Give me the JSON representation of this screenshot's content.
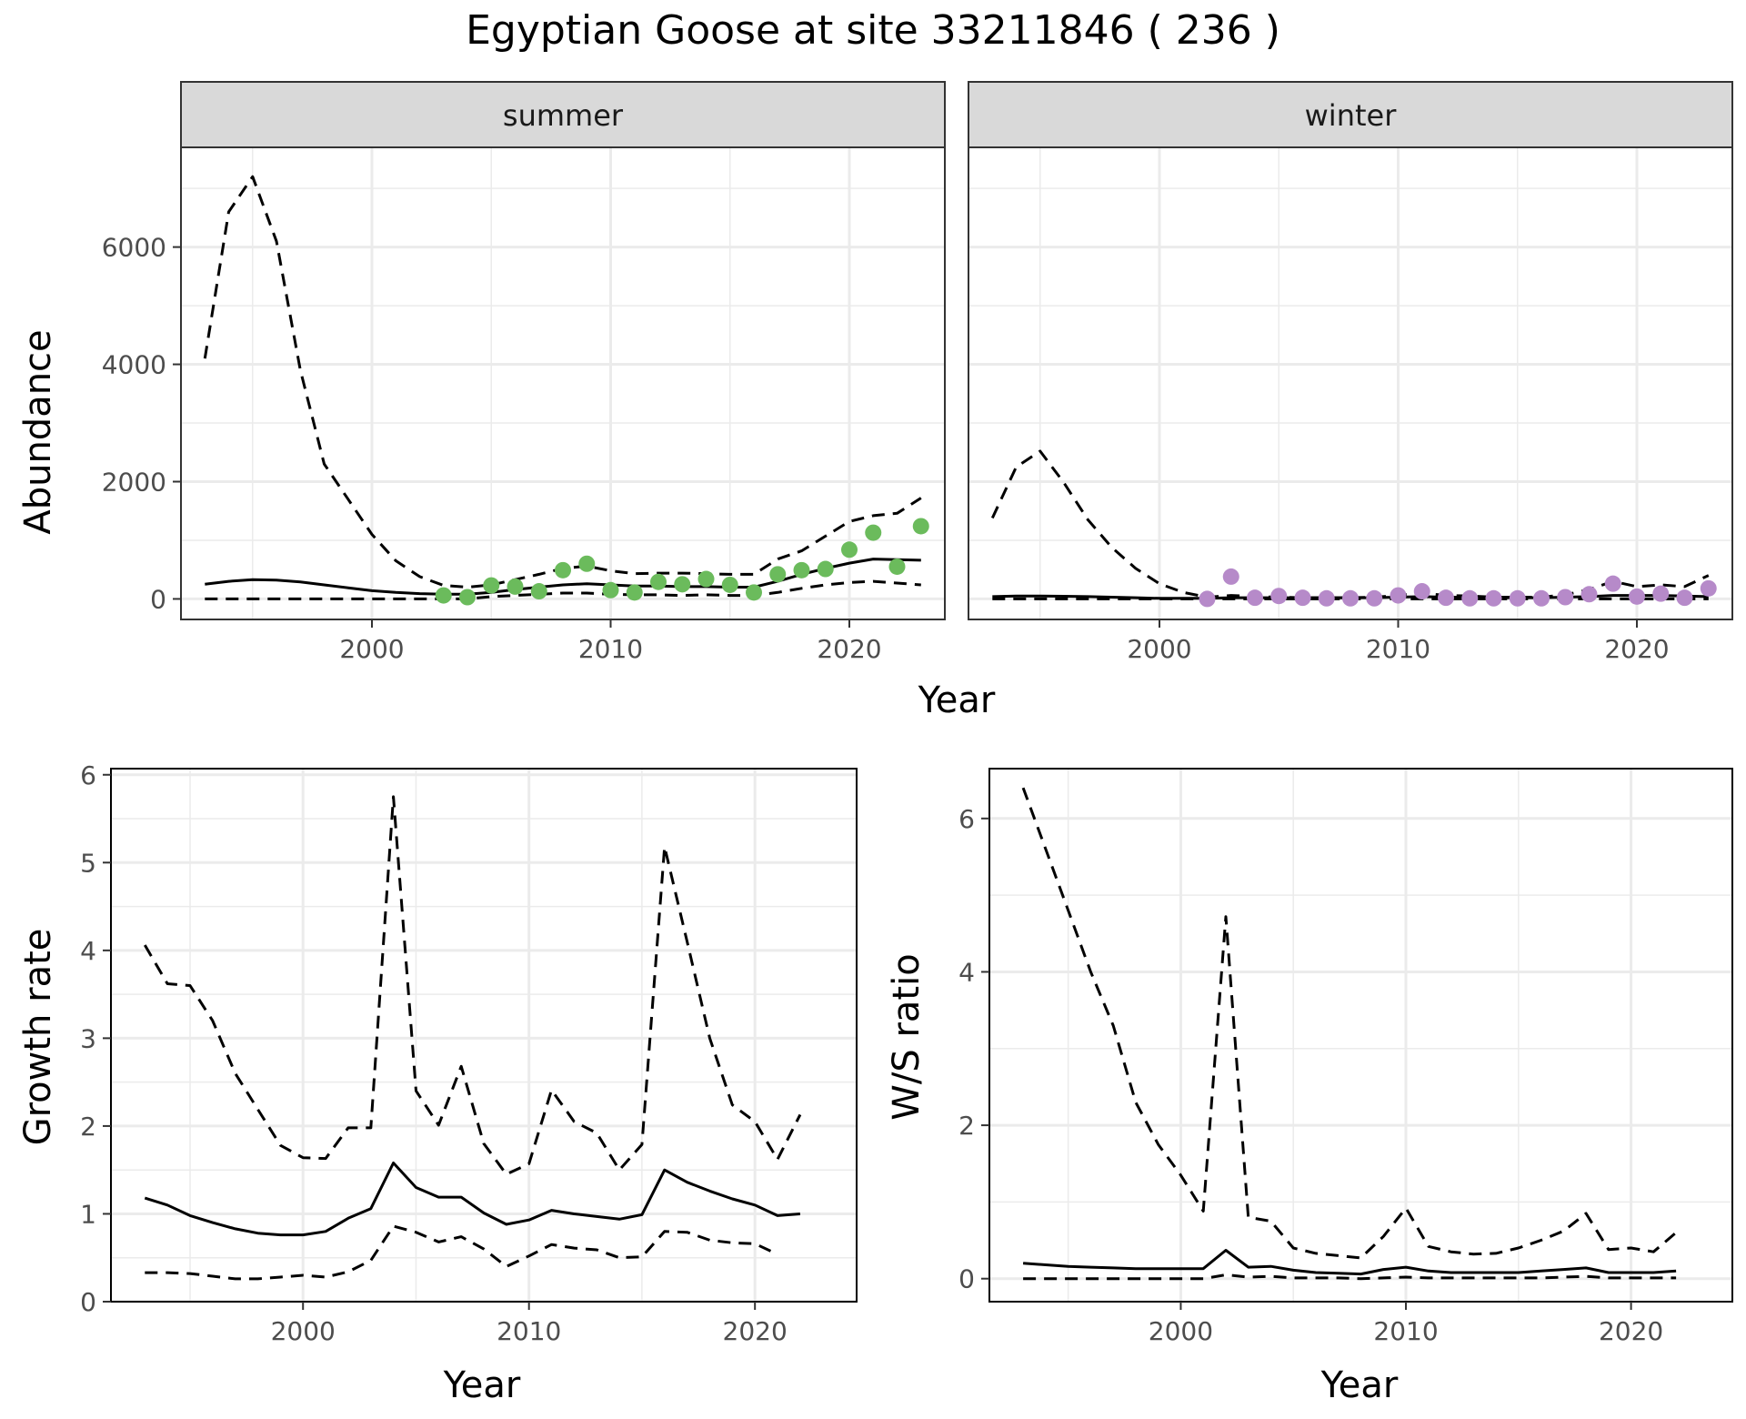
{
  "title": "Egyptian Goose at site 33211846 ( 236 )",
  "colors": {
    "summer_points": "#6bbb5c",
    "winter_points": "#b68ac9",
    "line": "#000000",
    "strip_fill": "#d9d9d9",
    "grid": "#ebebeb"
  },
  "chart_data": [
    {
      "type": "line",
      "facet": "summer",
      "xlabel": "Year",
      "ylabel": "Abundance",
      "xlim": [
        1992,
        2024
      ],
      "ylim": [
        -350,
        7700
      ],
      "xticks": [
        2000,
        2010,
        2020
      ],
      "yticks": [
        0,
        2000,
        4000,
        6000
      ],
      "grid": true,
      "x": [
        1993,
        1994,
        1995,
        1996,
        1997,
        1998,
        1999,
        2000,
        2001,
        2002,
        2003,
        2004,
        2005,
        2006,
        2007,
        2008,
        2009,
        2010,
        2011,
        2012,
        2013,
        2014,
        2015,
        2016,
        2017,
        2018,
        2019,
        2020,
        2021,
        2022,
        2023
      ],
      "series": [
        {
          "style": "solid",
          "values": [
            250,
            300,
            330,
            320,
            290,
            240,
            190,
            140,
            110,
            90,
            80,
            80,
            110,
            160,
            200,
            240,
            260,
            240,
            220,
            220,
            210,
            210,
            200,
            200,
            300,
            420,
            520,
            610,
            680,
            670,
            660
          ]
        },
        {
          "style": "dashed",
          "values": [
            4100,
            6600,
            7200,
            6100,
            3900,
            2300,
            1700,
            1100,
            650,
            380,
            230,
            200,
            240,
            330,
            420,
            520,
            560,
            480,
            430,
            440,
            440,
            430,
            420,
            420,
            680,
            820,
            1070,
            1320,
            1420,
            1460,
            1720
          ]
        },
        {
          "style": "dashed",
          "values": [
            0,
            0,
            0,
            0,
            0,
            0,
            0,
            0,
            0,
            0,
            0,
            0,
            40,
            60,
            80,
            100,
            100,
            80,
            70,
            70,
            60,
            70,
            60,
            60,
            110,
            180,
            240,
            280,
            300,
            270,
            240
          ]
        }
      ],
      "points": {
        "x": [
          2003,
          2004,
          2005,
          2006,
          2007,
          2008,
          2009,
          2010,
          2011,
          2012,
          2013,
          2014,
          2015,
          2016,
          2017,
          2018,
          2019,
          2020,
          2021,
          2022,
          2023
        ],
        "values": [
          60,
          30,
          230,
          210,
          130,
          490,
          600,
          150,
          110,
          290,
          250,
          340,
          240,
          110,
          420,
          490,
          510,
          840,
          1130,
          550,
          1240
        ]
      }
    },
    {
      "type": "line",
      "facet": "winter",
      "xlabel": "Year",
      "ylabel": "Abundance",
      "xlim": [
        1992,
        2024
      ],
      "ylim": [
        -350,
        7700
      ],
      "xticks": [
        2000,
        2010,
        2020
      ],
      "yticks": [
        0,
        2000,
        4000,
        6000
      ],
      "grid": true,
      "x": [
        1993,
        1994,
        1995,
        1996,
        1997,
        1998,
        1999,
        2000,
        2001,
        2002,
        2003,
        2004,
        2005,
        2006,
        2007,
        2008,
        2009,
        2010,
        2011,
        2012,
        2013,
        2014,
        2015,
        2016,
        2017,
        2018,
        2019,
        2020,
        2021,
        2022,
        2023
      ],
      "series": [
        {
          "style": "solid",
          "values": [
            40,
            50,
            50,
            45,
            40,
            30,
            20,
            10,
            10,
            10,
            20,
            20,
            20,
            20,
            20,
            20,
            20,
            30,
            40,
            30,
            30,
            20,
            20,
            20,
            30,
            40,
            60,
            60,
            60,
            50,
            40
          ]
        },
        {
          "style": "dashed",
          "values": [
            1380,
            2250,
            2520,
            1980,
            1350,
            880,
            520,
            260,
            110,
            30,
            60,
            40,
            30,
            20,
            20,
            20,
            30,
            60,
            100,
            60,
            50,
            30,
            30,
            30,
            70,
            160,
            300,
            210,
            240,
            210,
            400
          ]
        },
        {
          "style": "dashed",
          "values": [
            0,
            0,
            0,
            0,
            0,
            0,
            0,
            0,
            0,
            0,
            0,
            0,
            0,
            0,
            0,
            0,
            0,
            0,
            0,
            0,
            0,
            0,
            0,
            0,
            0,
            0,
            0,
            0,
            0,
            0,
            0
          ]
        }
      ],
      "points": {
        "x": [
          2002,
          2003,
          2004,
          2005,
          2006,
          2007,
          2008,
          2009,
          2010,
          2011,
          2012,
          2013,
          2014,
          2015,
          2016,
          2017,
          2018,
          2019,
          2020,
          2021,
          2022,
          2023
        ],
        "values": [
          0,
          380,
          20,
          50,
          20,
          10,
          10,
          10,
          60,
          130,
          20,
          10,
          10,
          10,
          10,
          30,
          80,
          260,
          40,
          90,
          20,
          180
        ]
      }
    },
    {
      "type": "line",
      "xlabel": "Year",
      "ylabel": "Growth rate",
      "xlim": [
        1991.5,
        2024.5
      ],
      "ylim": [
        0,
        6.07
      ],
      "xticks": [
        2000,
        2010,
        2020
      ],
      "yticks": [
        0,
        1,
        2,
        3,
        4,
        5,
        6
      ],
      "grid": true,
      "x": [
        1993,
        1994,
        1995,
        1996,
        1997,
        1998,
        1999,
        2000,
        2001,
        2002,
        2003,
        2004,
        2005,
        2006,
        2007,
        2008,
        2009,
        2010,
        2011,
        2012,
        2013,
        2014,
        2015,
        2016,
        2017,
        2018,
        2019,
        2020,
        2021,
        2022
      ],
      "series": [
        {
          "style": "solid",
          "values": [
            1.18,
            1.1,
            0.98,
            0.9,
            0.83,
            0.78,
            0.76,
            0.76,
            0.8,
            0.95,
            1.06,
            1.58,
            1.3,
            1.19,
            1.19,
            1.01,
            0.88,
            0.93,
            1.04,
            1.0,
            0.97,
            0.94,
            0.99,
            1.5,
            1.36,
            1.26,
            1.17,
            1.1,
            0.98,
            1.0
          ]
        },
        {
          "style": "dashed",
          "values": [
            4.06,
            3.62,
            3.6,
            3.2,
            2.6,
            2.19,
            1.78,
            1.64,
            1.63,
            1.98,
            1.98,
            5.75,
            2.4,
            2.01,
            2.68,
            1.8,
            1.45,
            1.57,
            2.41,
            2.05,
            1.92,
            1.5,
            1.79,
            5.18,
            4.1,
            3.0,
            2.24,
            2.05,
            1.62,
            2.13
          ]
        },
        {
          "style": "dashed",
          "values": [
            0.33,
            0.33,
            0.32,
            0.29,
            0.26,
            0.26,
            0.28,
            0.3,
            0.28,
            0.34,
            0.47,
            0.86,
            0.79,
            0.68,
            0.74,
            0.6,
            0.4,
            0.52,
            0.65,
            0.61,
            0.59,
            0.5,
            0.51,
            0.8,
            0.79,
            0.7,
            0.67,
            0.66,
            0.54,
            null
          ]
        }
      ]
    },
    {
      "type": "line",
      "xlabel": "Year",
      "ylabel": "W/S ratio",
      "xlim": [
        1991.5,
        2024.5
      ],
      "ylim": [
        -0.3,
        6.65
      ],
      "xticks": [
        2000,
        2010,
        2020
      ],
      "yticks": [
        0,
        2,
        4,
        6
      ],
      "grid": true,
      "x": [
        1993,
        1994,
        1995,
        1996,
        1997,
        1998,
        1999,
        2000,
        2001,
        2002,
        2003,
        2004,
        2005,
        2006,
        2007,
        2008,
        2009,
        2010,
        2011,
        2012,
        2013,
        2014,
        2015,
        2016,
        2017,
        2018,
        2019,
        2020,
        2021,
        2022
      ],
      "series": [
        {
          "style": "solid",
          "values": [
            0.2,
            0.18,
            0.16,
            0.15,
            0.14,
            0.13,
            0.13,
            0.13,
            0.13,
            0.37,
            0.15,
            0.16,
            0.11,
            0.08,
            0.07,
            0.06,
            0.12,
            0.15,
            0.1,
            0.08,
            0.08,
            0.08,
            0.08,
            0.1,
            0.12,
            0.14,
            0.08,
            0.08,
            0.08,
            0.1
          ]
        },
        {
          "style": "dashed",
          "values": [
            6.4,
            5.6,
            4.8,
            4.0,
            3.3,
            2.3,
            1.75,
            1.35,
            0.88,
            4.72,
            0.8,
            0.75,
            0.4,
            0.33,
            0.3,
            0.27,
            0.55,
            0.92,
            0.42,
            0.35,
            0.32,
            0.33,
            0.4,
            0.5,
            0.62,
            0.85,
            0.38,
            0.4,
            0.35,
            0.6
          ]
        },
        {
          "style": "dashed",
          "values": [
            0.0,
            0.0,
            0.0,
            0.0,
            0.0,
            0.0,
            0.0,
            0.0,
            0.0,
            0.05,
            0.02,
            0.03,
            0.01,
            0.01,
            0.01,
            0.0,
            0.01,
            0.02,
            0.01,
            0.01,
            0.01,
            0.01,
            0.01,
            0.01,
            0.02,
            0.03,
            0.01,
            0.01,
            0.01,
            0.01
          ]
        }
      ]
    }
  ],
  "strips": {
    "summer": "summer",
    "winter": "winter"
  },
  "shared_xlabel": "Year"
}
